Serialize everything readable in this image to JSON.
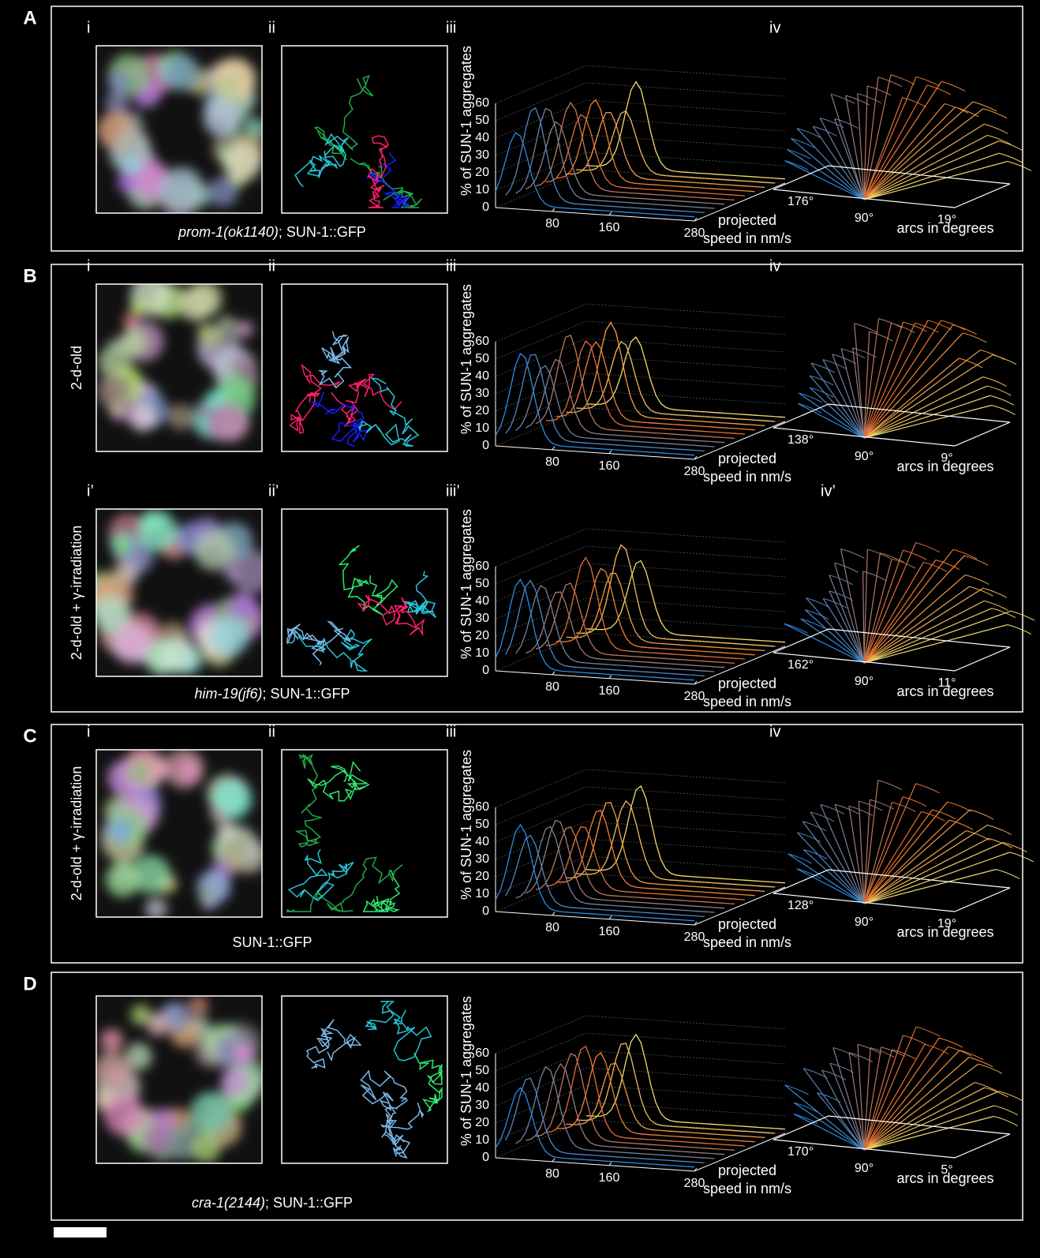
{
  "panels": [
    {
      "letter": "A",
      "caption": {
        "italic": "prom-1(ok1140)",
        "text": "; SUN-1::GFP"
      },
      "rows": [
        {
          "labels": [
            "i",
            "ii",
            "iii",
            "iv"
          ],
          "speed_plot": {
            "y_label": "% of SUN-1 aggregates",
            "yticks": [
              0,
              10,
              20,
              30,
              40,
              50,
              60
            ],
            "xticks": [
              80,
              160,
              280
            ],
            "x_label": [
              "projected",
              "speed in nm/s"
            ]
          },
          "arc_plot": {
            "ticks": [
              "176°",
              "90°",
              "19°"
            ],
            "label": "arcs in degrees"
          }
        }
      ]
    },
    {
      "letter": "B",
      "caption": {
        "italic": "him-19(jf6)",
        "text": "; SUN-1::GFP"
      },
      "rows": [
        {
          "labels": [
            "i",
            "ii",
            "iii",
            "iv"
          ],
          "side_label": "2-d-old",
          "speed_plot": {
            "y_label": "% of SUN-1 aggregates",
            "yticks": [
              0,
              10,
              20,
              30,
              40,
              50,
              60
            ],
            "xticks": [
              80,
              160,
              280
            ],
            "x_label": [
              "projected",
              "speed in nm/s"
            ]
          },
          "arc_plot": {
            "ticks": [
              "138°",
              "90°",
              "9°"
            ],
            "label": "arcs in degrees"
          }
        },
        {
          "labels": [
            "i’",
            "ii’",
            "iii’",
            "iv’"
          ],
          "side_label": "2-d-old + γ-irradiation",
          "speed_plot": {
            "y_label": "% of SUN-1 aggregates",
            "yticks": [
              0,
              10,
              20,
              30,
              40,
              50,
              60
            ],
            "xticks": [
              80,
              160,
              280
            ],
            "x_label": [
              "projected",
              "speed in nm/s"
            ]
          },
          "arc_plot": {
            "ticks": [
              "162°",
              "90°",
              "11°"
            ],
            "label": "arcs in degrees"
          }
        }
      ]
    },
    {
      "letter": "C",
      "caption": {
        "text": "SUN-1::GFP"
      },
      "rows": [
        {
          "labels": [
            "i",
            "ii",
            "iii",
            "iv"
          ],
          "side_label": "2-d-old + γ-irradiation",
          "speed_plot": {
            "y_label": "% of SUN-1 aggregates",
            "yticks": [
              0,
              10,
              20,
              30,
              40,
              50,
              60
            ],
            "xticks": [
              80,
              160,
              280
            ],
            "x_label": [
              "projected",
              "speed in nm/s"
            ]
          },
          "arc_plot": {
            "ticks": [
              "128°",
              "90°",
              "19°"
            ],
            "label": "arcs in degrees"
          }
        }
      ]
    },
    {
      "letter": "D",
      "caption": {
        "italic": "cra-1(2144)",
        "text": "; SUN-1::GFP"
      },
      "rows": [
        {
          "speed_plot": {
            "y_label": "% of SUN-1 aggregates",
            "yticks": [
              0,
              10,
              20,
              30,
              40,
              50,
              60
            ],
            "xticks": [
              80,
              160,
              280
            ],
            "x_label": [
              "projected",
              "speed in nm/s"
            ]
          },
          "arc_plot": {
            "ticks": [
              "170°",
              "90°",
              "5°"
            ],
            "label": "arcs in degrees"
          }
        }
      ]
    }
  ]
}
